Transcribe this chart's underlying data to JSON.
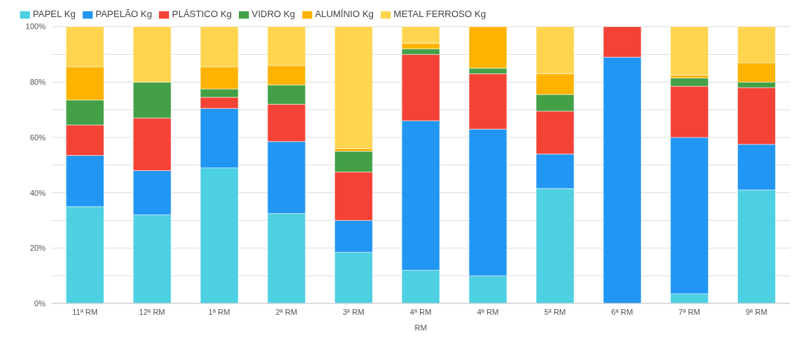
{
  "chart_data": {
    "type": "bar",
    "stacked": true,
    "xlabel": "RM",
    "legend": "top left",
    "grid": "y",
    "categories": [
      "11ª RM",
      "12ª RM",
      "1ª RM",
      "2ª RM",
      "3ª RM",
      "4ª RM",
      "4ª RM",
      "5ª RM",
      "6ª RM",
      "7ª RM",
      "9ª RM"
    ],
    "ylim": [
      0,
      100
    ],
    "yticks": [
      {
        "value": 0,
        "label": "0%"
      },
      {
        "value": 10,
        "label": null
      },
      {
        "value": 20,
        "label": "20%"
      },
      {
        "value": 30,
        "label": null
      },
      {
        "value": 40,
        "label": "40%"
      },
      {
        "value": 50,
        "label": null
      },
      {
        "value": 60,
        "label": "60%"
      },
      {
        "value": 70,
        "label": null
      },
      {
        "value": 80,
        "label": "80%"
      },
      {
        "value": 90,
        "label": null
      },
      {
        "value": 100,
        "label": "100%"
      }
    ],
    "series": [
      {
        "name": "PAPEL Kg",
        "color": "#4dd0e1",
        "values": [
          35,
          32,
          49,
          32.5,
          18.5,
          12,
          10,
          41.5,
          0,
          3.5,
          41
        ]
      },
      {
        "name": "PAPELÃO Kg",
        "color": "#2196f3",
        "values": [
          18.5,
          16,
          21.5,
          26,
          11.5,
          54,
          53,
          12.5,
          89,
          56.5,
          16.5
        ]
      },
      {
        "name": "PLÁSTICO Kg",
        "color": "#f44336",
        "values": [
          11,
          19,
          4,
          13.5,
          17.5,
          24,
          20,
          15.5,
          11,
          18.5,
          20.5
        ]
      },
      {
        "name": "VIDRO Kg",
        "color": "#43a047",
        "values": [
          9,
          13,
          3,
          7,
          7.5,
          2,
          2,
          6,
          0,
          3,
          2
        ]
      },
      {
        "name": "ALUMÍNIO Kg",
        "color": "#ffb300",
        "values": [
          12,
          0,
          8,
          7,
          1,
          2,
          15,
          7.5,
          0,
          1,
          7
        ]
      },
      {
        "name": "METAL FERROSO Kg",
        "color": "#ffd54f",
        "values": [
          14.5,
          20,
          14.5,
          14,
          44,
          6,
          0,
          17,
          0,
          17.5,
          13
        ]
      }
    ]
  }
}
